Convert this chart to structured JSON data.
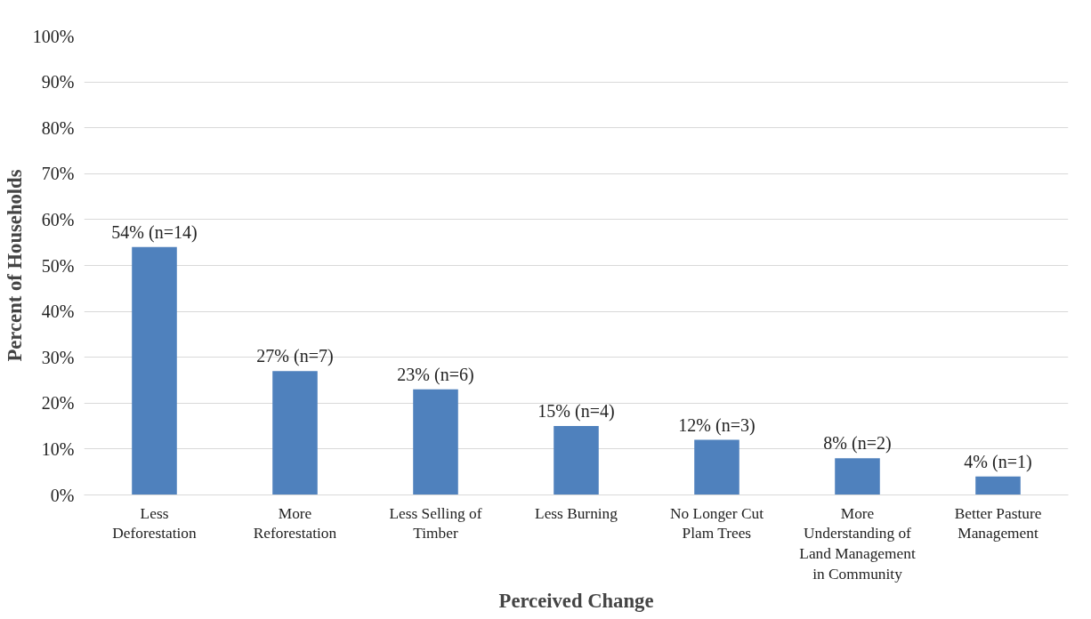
{
  "chart_data": {
    "type": "bar",
    "xlabel": "Perceived Change",
    "ylabel": "Percent of Households",
    "categories": [
      "Less Deforestation",
      "More Reforestation",
      "Less Selling of Timber",
      "Less Burning",
      "No Longer Cut Plam Trees",
      "More Understanding of Land Management in Community",
      "Better Pasture Management"
    ],
    "values": [
      54,
      27,
      23,
      15,
      12,
      8,
      4
    ],
    "value_labels": [
      "54% (n=14)",
      "27% (n=7)",
      "23% (n=6)",
      "15% (n=4)",
      "12% (n=3)",
      "8% (n=2)",
      "4% (n=1)"
    ],
    "color": "#4f81bd",
    "ylim": [
      0,
      100
    ],
    "yticks": [
      {
        "value": 0,
        "label": "0%"
      },
      {
        "value": 10,
        "label": "10%"
      },
      {
        "value": 20,
        "label": "20%"
      },
      {
        "value": 30,
        "label": "30%"
      },
      {
        "value": 40,
        "label": "40%"
      },
      {
        "value": 50,
        "label": "50%"
      },
      {
        "value": 60,
        "label": "60%"
      },
      {
        "value": 70,
        "label": "70%"
      },
      {
        "value": 80,
        "label": "80%"
      },
      {
        "value": 90,
        "label": "90%"
      },
      {
        "value": 100,
        "label": "100%"
      }
    ],
    "grid": "y"
  }
}
